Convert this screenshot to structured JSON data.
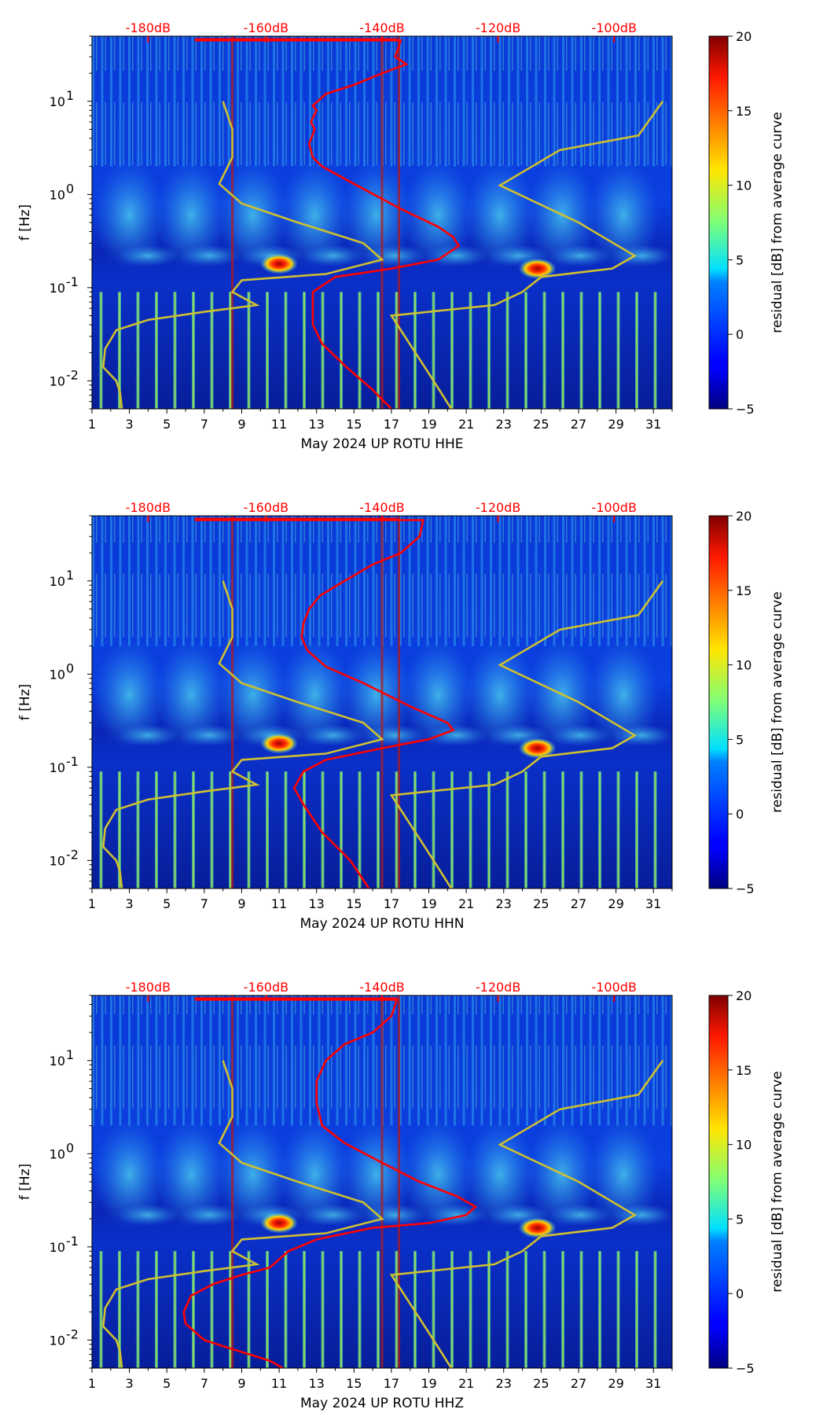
{
  "chart_data": [
    {
      "type": "heatmap",
      "xlabel": "May 2024 UP ROTU  HHE",
      "ylabel": "f [Hz]",
      "x_ticks": [
        "1",
        "3",
        "5",
        "7",
        "9",
        "11",
        "13",
        "15",
        "17",
        "19",
        "21",
        "23",
        "25",
        "27",
        "29",
        "31"
      ],
      "y_ticks": [
        "10^-2",
        "10^-1",
        "10^0",
        "10^1"
      ],
      "xlim": [
        1,
        32
      ],
      "ylim": [
        0.005,
        50
      ],
      "y_scale": "log",
      "top_ticks": [
        "-180dB",
        "-160dB",
        "-140dB",
        "-120dB",
        "-100dB"
      ],
      "colorbar": {
        "label": "residual [dB] from average curve",
        "ticks": [
          "20",
          "15",
          "10",
          "5",
          "0",
          "−5"
        ],
        "range": [
          -5,
          20
        ],
        "colormap": "jet"
      },
      "vertical_lines_day": [
        8.5,
        16.5,
        17.4
      ],
      "blobs": [
        {
          "day": 11.0,
          "freq": 0.18
        },
        {
          "day": 24.8,
          "freq": 0.16
        }
      ],
      "series": [
        {
          "color": "#cfc030",
          "x": [
            8.0,
            8.5,
            8.5,
            7.8,
            9.0,
            12.0,
            15.5,
            16.5,
            13.5,
            9.0,
            8.5,
            9.8,
            8.5,
            7.0,
            4.0,
            2.3,
            1.7,
            1.6,
            2.3,
            2.5,
            2.6
          ],
          "y": [
            10,
            5,
            2.5,
            1.3,
            0.8,
            0.5,
            0.3,
            0.2,
            0.14,
            0.12,
            0.09,
            0.065,
            0.06,
            0.055,
            0.045,
            0.035,
            0.022,
            0.014,
            0.01,
            0.0075,
            0.005
          ]
        },
        {
          "color": "#cfc030",
          "x": [
            31.5,
            30.2,
            26.0,
            22.8,
            27.0,
            30.0,
            28.8,
            25.0,
            24.0,
            22.5,
            17.0,
            19.0,
            20.2
          ],
          "y": [
            10,
            4.3,
            3.0,
            1.25,
            0.5,
            0.22,
            0.16,
            0.13,
            0.09,
            0.065,
            0.05,
            0.012,
            0.005
          ]
        },
        {
          "color": "#ff0000",
          "x": [
            6.5,
            17.5,
            17.2,
            17.8,
            16.5,
            15.0,
            13.5,
            12.8,
            13.0,
            12.7,
            12.9,
            12.6,
            12.8,
            13.3,
            15.0,
            17.5,
            19.5,
            20.3,
            20.6,
            19.5,
            17.0,
            14.0,
            12.8,
            12.8,
            13.3,
            14.6,
            16.0,
            17.0
          ],
          "y": [
            45,
            45,
            30,
            25,
            20,
            15,
            12,
            9,
            8,
            6,
            5,
            3.5,
            2.5,
            2.0,
            1.3,
            0.7,
            0.45,
            0.35,
            0.28,
            0.2,
            0.16,
            0.13,
            0.09,
            0.04,
            0.025,
            0.014,
            0.008,
            0.005
          ]
        }
      ]
    },
    {
      "type": "heatmap",
      "xlabel": "May 2024 UP ROTU  HHN",
      "ylabel": "f [Hz]",
      "x_ticks": [
        "1",
        "3",
        "5",
        "7",
        "9",
        "11",
        "13",
        "15",
        "17",
        "19",
        "21",
        "23",
        "25",
        "27",
        "29",
        "31"
      ],
      "y_ticks": [
        "10^-2",
        "10^-1",
        "10^0",
        "10^1"
      ],
      "xlim": [
        1,
        32
      ],
      "ylim": [
        0.005,
        50
      ],
      "y_scale": "log",
      "top_ticks": [
        "-180dB",
        "-160dB",
        "-140dB",
        "-120dB",
        "-100dB"
      ],
      "colorbar": {
        "label": "residual [dB] from average curve",
        "ticks": [
          "20",
          "15",
          "10",
          "5",
          "0",
          "−5"
        ],
        "range": [
          -5,
          20
        ],
        "colormap": "jet"
      },
      "vertical_lines_day": [
        8.5,
        16.5,
        17.4
      ],
      "blobs": [
        {
          "day": 11.0,
          "freq": 0.18
        },
        {
          "day": 24.8,
          "freq": 0.16
        }
      ],
      "series": [
        {
          "color": "#cfc030",
          "x": [
            8.0,
            8.5,
            8.5,
            7.8,
            9.0,
            12.0,
            15.5,
            16.5,
            13.5,
            9.0,
            8.5,
            9.8,
            8.5,
            7.0,
            4.0,
            2.3,
            1.7,
            1.6,
            2.3,
            2.5,
            2.6
          ],
          "y": [
            10,
            5,
            2.5,
            1.3,
            0.8,
            0.5,
            0.3,
            0.2,
            0.14,
            0.12,
            0.09,
            0.065,
            0.06,
            0.055,
            0.045,
            0.035,
            0.022,
            0.014,
            0.01,
            0.0075,
            0.005
          ]
        },
        {
          "color": "#cfc030",
          "x": [
            31.5,
            30.2,
            26.0,
            22.8,
            27.0,
            30.0,
            28.8,
            25.0,
            24.0,
            22.5,
            17.0,
            19.0,
            20.2
          ],
          "y": [
            10,
            4.3,
            3.0,
            1.25,
            0.5,
            0.22,
            0.16,
            0.13,
            0.09,
            0.065,
            0.05,
            0.012,
            0.005
          ]
        },
        {
          "color": "#ff0000",
          "x": [
            6.5,
            18.7,
            18.5,
            17.5,
            16.0,
            14.5,
            13.2,
            12.6,
            12.3,
            12.2,
            12.5,
            13.5,
            15.5,
            18.0,
            20.0,
            20.3,
            19.0,
            16.5,
            13.5,
            12.3,
            11.8,
            12.3,
            13.3,
            14.8,
            15.8
          ],
          "y": [
            45,
            45,
            30,
            20,
            15,
            10,
            7,
            5,
            3.5,
            2.5,
            1.8,
            1.2,
            0.8,
            0.45,
            0.3,
            0.25,
            0.2,
            0.16,
            0.12,
            0.09,
            0.06,
            0.04,
            0.02,
            0.01,
            0.005
          ]
        }
      ]
    },
    {
      "type": "heatmap",
      "xlabel": "May 2024 UP ROTU  HHZ",
      "ylabel": "f [Hz]",
      "x_ticks": [
        "1",
        "3",
        "5",
        "7",
        "9",
        "11",
        "13",
        "15",
        "17",
        "19",
        "21",
        "23",
        "25",
        "27",
        "29",
        "31"
      ],
      "y_ticks": [
        "10^-2",
        "10^-1",
        "10^0",
        "10^1"
      ],
      "xlim": [
        1,
        32
      ],
      "ylim": [
        0.005,
        50
      ],
      "y_scale": "log",
      "top_ticks": [
        "-180dB",
        "-160dB",
        "-140dB",
        "-120dB",
        "-100dB"
      ],
      "colorbar": {
        "label": "residual [dB] from average curve",
        "ticks": [
          "20",
          "15",
          "10",
          "5",
          "0",
          "−5"
        ],
        "range": [
          -5,
          20
        ],
        "colormap": "jet"
      },
      "vertical_lines_day": [
        8.5,
        16.5,
        17.4
      ],
      "blobs": [
        {
          "day": 11.0,
          "freq": 0.18
        },
        {
          "day": 24.8,
          "freq": 0.16
        }
      ],
      "series": [
        {
          "color": "#cfc030",
          "x": [
            8.0,
            8.5,
            8.5,
            7.8,
            9.0,
            12.0,
            15.5,
            16.5,
            13.5,
            9.0,
            8.5,
            9.8,
            8.5,
            7.0,
            4.0,
            2.3,
            1.7,
            1.6,
            2.3,
            2.5,
            2.6
          ],
          "y": [
            10,
            5,
            2.5,
            1.3,
            0.8,
            0.5,
            0.3,
            0.2,
            0.14,
            0.12,
            0.09,
            0.065,
            0.06,
            0.055,
            0.045,
            0.035,
            0.022,
            0.014,
            0.01,
            0.0075,
            0.005
          ]
        },
        {
          "color": "#cfc030",
          "x": [
            31.5,
            30.2,
            26.0,
            22.8,
            27.0,
            30.0,
            28.8,
            25.0,
            24.0,
            22.5,
            17.0,
            19.0,
            20.2
          ],
          "y": [
            10,
            4.3,
            3.0,
            1.25,
            0.5,
            0.22,
            0.16,
            0.13,
            0.09,
            0.065,
            0.05,
            0.012,
            0.005
          ]
        },
        {
          "color": "#ff0000",
          "x": [
            6.5,
            17.3,
            17.0,
            16.0,
            14.5,
            13.5,
            13.0,
            13.0,
            13.3,
            14.5,
            16.5,
            18.5,
            20.5,
            21.5,
            21.0,
            19.0,
            16.0,
            13.0,
            11.5,
            10.5,
            9.0,
            7.5,
            6.3,
            5.9,
            6.0,
            7.0,
            8.5,
            10.5,
            11.2
          ],
          "y": [
            45,
            45,
            30,
            20,
            15,
            10,
            6,
            3.5,
            2.0,
            1.3,
            0.8,
            0.5,
            0.35,
            0.27,
            0.22,
            0.18,
            0.16,
            0.12,
            0.09,
            0.06,
            0.05,
            0.04,
            0.03,
            0.02,
            0.015,
            0.01,
            0.008,
            0.006,
            0.005
          ]
        }
      ]
    }
  ]
}
